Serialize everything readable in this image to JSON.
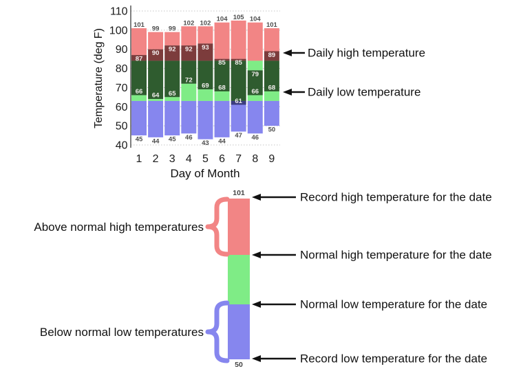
{
  "chart_data": {
    "type": "bar",
    "variant": "climate-temperature-record-bands",
    "title": "",
    "xlabel": "Day of Month",
    "ylabel": "Temperature (deg F)",
    "ylim": [
      40,
      110
    ],
    "yticks": [
      110,
      100,
      90,
      80,
      70,
      60,
      50,
      40
    ],
    "grid": "dotted horizontal",
    "categories": [
      "1",
      "2",
      "3",
      "4",
      "5",
      "6",
      "7",
      "8",
      "9"
    ],
    "series": [
      {
        "name": "Record high",
        "values": [
          101,
          99,
          99,
          102,
          102,
          104,
          105,
          104,
          101
        ]
      },
      {
        "name": "Daily high",
        "values": [
          87,
          90,
          92,
          92,
          93,
          85,
          85,
          79,
          89
        ]
      },
      {
        "name": "Daily low",
        "values": [
          66,
          64,
          65,
          72,
          69,
          68,
          61,
          66,
          68
        ]
      },
      {
        "name": "Record low",
        "values": [
          45,
          44,
          45,
          46,
          43,
          44,
          47,
          46,
          50
        ]
      }
    ],
    "normal_high": 84,
    "normal_low": 63,
    "annotations": [
      {
        "label": "Daily high temperature"
      },
      {
        "label": "Daily low temperature"
      }
    ]
  },
  "legend_diagram": {
    "top_value": "101",
    "bottom_value": "50",
    "left_labels": [
      "Above normal high temperatures",
      "Below normal low temperatures"
    ],
    "right_labels": [
      "Record high temperature for the date",
      "Normal high temperature for the date",
      "Normal low temperature for the date",
      "Record low temperature for the date"
    ]
  },
  "colors": {
    "pink_above_normal": "#F28585",
    "maroon_daily_high": "#7C3C3C",
    "dark_green_daily_range": "#2F5C2F",
    "bright_green_normal": "#7FEC86",
    "blue_below_normal": "#8686EE",
    "navy_daily_low": "#3C3C80",
    "grid": "#C4C4C4",
    "axis": "#555555",
    "value_label": "#4D4D4D",
    "inside_label": "#F2EDED",
    "text": "#111111"
  }
}
